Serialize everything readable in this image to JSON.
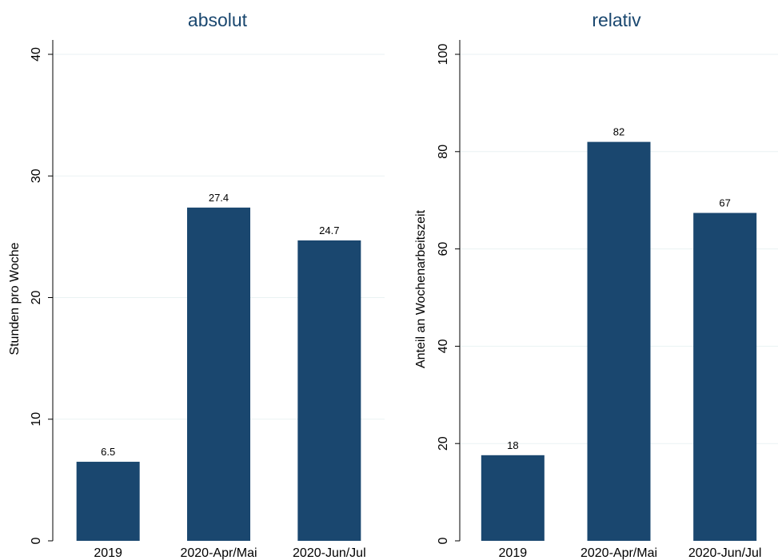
{
  "chart_data": [
    {
      "type": "bar",
      "title": "absolut",
      "xlabel": "",
      "ylabel": "Stunden pro Woche",
      "categories": [
        "2019",
        "2020-Apr/Mai",
        "2020-Jun/Jul"
      ],
      "values": [
        6.5,
        27.4,
        24.7
      ],
      "value_labels": [
        "6.5",
        "27.4",
        "24.7"
      ],
      "yticks": [
        0,
        10,
        20,
        30,
        40
      ],
      "ylim": [
        0,
        40
      ],
      "grid": true,
      "bar_color": "#1a476f"
    },
    {
      "type": "bar",
      "title": "relativ",
      "xlabel": "",
      "ylabel": "Anteil an Wochenarbeitszeit",
      "categories": [
        "2019",
        "2020-Apr/Mai",
        "2020-Jun/Jul"
      ],
      "values": [
        17.6,
        82,
        67.4
      ],
      "value_labels": [
        "18",
        "82",
        "67"
      ],
      "yticks": [
        0,
        20,
        40,
        60,
        80,
        100
      ],
      "ylim": [
        0,
        100
      ],
      "grid": true,
      "bar_color": "#1a476f"
    }
  ]
}
